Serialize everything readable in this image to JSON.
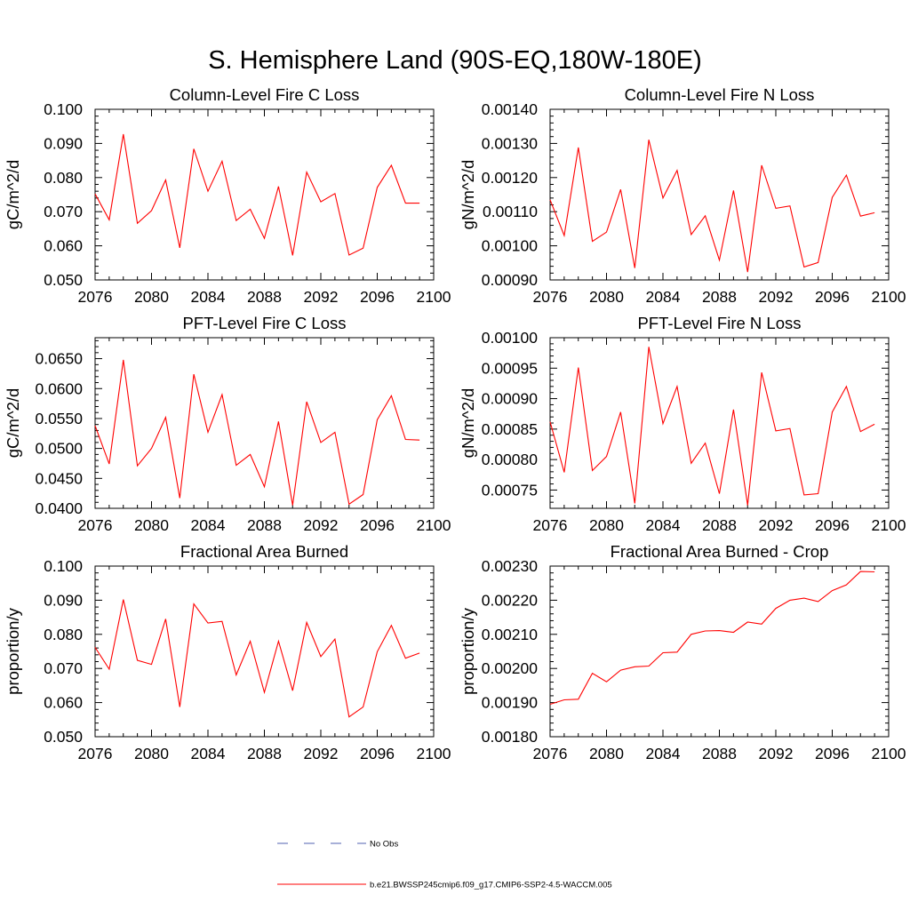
{
  "figure": {
    "title": "S. Hemisphere Land (90S-EQ,180W-180E)",
    "legend": [
      {
        "label": "No Obs",
        "color": "#5060b0",
        "dash": true
      },
      {
        "label": "b.e21.BWSSP245cmip6.f09_g17.CMIP6-SSP2-4.5-WACCM.005",
        "color": "#ff0000",
        "dash": false
      }
    ]
  },
  "chart_data": [
    {
      "type": "line",
      "title": "Column-Level Fire C Loss",
      "xlabel": "",
      "ylabel": "gC/m^2/d",
      "xlim": [
        2076,
        2100
      ],
      "ylim": [
        0.05,
        0.1
      ],
      "xticks": [
        "2076",
        "2080",
        "2084",
        "2088",
        "2092",
        "2096",
        "2100"
      ],
      "yticks": [
        "0.050",
        "0.060",
        "0.070",
        "0.080",
        "0.090",
        "0.100"
      ],
      "series": [
        {
          "name": "b.e21.BWSSP245cmip6.f09_g17.CMIP6-SSP2-4.5-WACCM.005",
          "color": "#ff0000",
          "x": [
            2076,
            2077,
            2078,
            2079,
            2080,
            2081,
            2082,
            2083,
            2084,
            2085,
            2086,
            2087,
            2088,
            2089,
            2090,
            2091,
            2092,
            2093,
            2094,
            2095,
            2096,
            2097,
            2098,
            2099
          ],
          "values": [
            0.0752,
            0.0676,
            0.0927,
            0.0666,
            0.0703,
            0.0793,
            0.0594,
            0.0884,
            0.076,
            0.0848,
            0.0674,
            0.0707,
            0.0622,
            0.0774,
            0.0572,
            0.0816,
            0.0729,
            0.0753,
            0.0573,
            0.0593,
            0.0771,
            0.0836,
            0.0725,
            0.0725
          ]
        }
      ]
    },
    {
      "type": "line",
      "title": "Column-Level Fire N Loss",
      "xlabel": "",
      "ylabel": "gN/m^2/d",
      "xlim": [
        2076,
        2100
      ],
      "ylim": [
        0.0009,
        0.0014
      ],
      "xticks": [
        "2076",
        "2080",
        "2084",
        "2088",
        "2092",
        "2096",
        "2100"
      ],
      "yticks": [
        "0.00090",
        "0.00100",
        "0.00110",
        "0.00120",
        "0.00130",
        "0.00140"
      ],
      "series": [
        {
          "name": "b.e21.BWSSP245cmip6.f09_g17.CMIP6-SSP2-4.5-WACCM.005",
          "color": "#ff0000",
          "x": [
            2076,
            2077,
            2078,
            2079,
            2080,
            2081,
            2082,
            2083,
            2084,
            2085,
            2086,
            2087,
            2088,
            2089,
            2090,
            2091,
            2092,
            2093,
            2094,
            2095,
            2096,
            2097,
            2098,
            2099
          ],
          "values": [
            0.001135,
            0.00103,
            0.001288,
            0.001013,
            0.00104,
            0.001165,
            0.000935,
            0.001311,
            0.00114,
            0.001221,
            0.001033,
            0.001088,
            0.000958,
            0.001162,
            0.000923,
            0.001236,
            0.00111,
            0.001117,
            0.000938,
            0.000951,
            0.001142,
            0.001207,
            0.001087,
            0.001097
          ]
        }
      ]
    },
    {
      "type": "line",
      "title": "PFT-Level Fire C Loss",
      "xlabel": "",
      "ylabel": "gC/m^2/d",
      "xlim": [
        2076,
        2100
      ],
      "ylim": [
        0.04,
        0.0685
      ],
      "xticks": [
        "2076",
        "2080",
        "2084",
        "2088",
        "2092",
        "2096",
        "2100"
      ],
      "yticks": [
        "0.0400",
        "0.0450",
        "0.0500",
        "0.0550",
        "0.0600",
        "0.0650"
      ],
      "series": [
        {
          "name": "b.e21.BWSSP245cmip6.f09_g17.CMIP6-SSP2-4.5-WACCM.005",
          "color": "#ff0000",
          "x": [
            2076,
            2077,
            2078,
            2079,
            2080,
            2081,
            2082,
            2083,
            2084,
            2085,
            2086,
            2087,
            2088,
            2089,
            2090,
            2091,
            2092,
            2093,
            2094,
            2095,
            2096,
            2097,
            2098,
            2099
          ],
          "values": [
            0.0538,
            0.0474,
            0.0648,
            0.0471,
            0.05,
            0.0552,
            0.0417,
            0.0624,
            0.0527,
            0.059,
            0.0472,
            0.049,
            0.0436,
            0.0545,
            0.0405,
            0.0578,
            0.051,
            0.0527,
            0.0407,
            0.0423,
            0.0548,
            0.0588,
            0.0515,
            0.0514
          ]
        }
      ]
    },
    {
      "type": "line",
      "title": "PFT-Level Fire N Loss",
      "xlabel": "",
      "ylabel": "gN/m^2/d",
      "xlim": [
        2076,
        2100
      ],
      "ylim": [
        0.00072,
        0.001
      ],
      "xticks": [
        "2076",
        "2080",
        "2084",
        "2088",
        "2092",
        "2096",
        "2100"
      ],
      "yticks": [
        "0.00075",
        "0.00080",
        "0.00085",
        "0.00090",
        "0.00095",
        "0.00100"
      ],
      "series": [
        {
          "name": "b.e21.BWSSP245cmip6.f09_g17.CMIP6-SSP2-4.5-WACCM.005",
          "color": "#ff0000",
          "x": [
            2076,
            2077,
            2078,
            2079,
            2080,
            2081,
            2082,
            2083,
            2084,
            2085,
            2086,
            2087,
            2088,
            2089,
            2090,
            2091,
            2092,
            2093,
            2094,
            2095,
            2096,
            2097,
            2098,
            2099
          ],
          "values": [
            0.000862,
            0.000779,
            0.000951,
            0.000782,
            0.000805,
            0.000878,
            0.000728,
            0.000985,
            0.000859,
            0.00092,
            0.000794,
            0.000827,
            0.000744,
            0.000882,
            0.000725,
            0.000943,
            0.000847,
            0.000851,
            0.000742,
            0.000744,
            0.000878,
            0.00092,
            0.000846,
            0.000858
          ]
        }
      ]
    },
    {
      "type": "line",
      "title": "Fractional Area Burned",
      "xlabel": "",
      "ylabel": "proportion/y",
      "xlim": [
        2076,
        2100
      ],
      "ylim": [
        0.05,
        0.1
      ],
      "xticks": [
        "2076",
        "2080",
        "2084",
        "2088",
        "2092",
        "2096",
        "2100"
      ],
      "yticks": [
        "0.050",
        "0.060",
        "0.070",
        "0.080",
        "0.090",
        "0.100"
      ],
      "series": [
        {
          "name": "b.e21.BWSSP245cmip6.f09_g17.CMIP6-SSP2-4.5-WACCM.005",
          "color": "#ff0000",
          "x": [
            2076,
            2077,
            2078,
            2079,
            2080,
            2081,
            2082,
            2083,
            2084,
            2085,
            2086,
            2087,
            2088,
            2089,
            2090,
            2091,
            2092,
            2093,
            2094,
            2095,
            2096,
            2097,
            2098,
            2099
          ],
          "values": [
            0.0762,
            0.0698,
            0.0902,
            0.0724,
            0.0712,
            0.0845,
            0.0587,
            0.0889,
            0.0833,
            0.0838,
            0.0681,
            0.078,
            0.063,
            0.078,
            0.0635,
            0.0835,
            0.0735,
            0.0786,
            0.0558,
            0.0587,
            0.0749,
            0.0826,
            0.073,
            0.0745
          ]
        }
      ]
    },
    {
      "type": "line",
      "title": "Fractional Area Burned - Crop",
      "xlabel": "",
      "ylabel": "proportion/y",
      "xlim": [
        2076,
        2100
      ],
      "ylim": [
        0.0018,
        0.0023
      ],
      "xticks": [
        "2076",
        "2080",
        "2084",
        "2088",
        "2092",
        "2096",
        "2100"
      ],
      "yticks": [
        "0.00180",
        "0.00190",
        "0.00200",
        "0.00210",
        "0.00220",
        "0.00230"
      ],
      "series": [
        {
          "name": "b.e21.BWSSP245cmip6.f09_g17.CMIP6-SSP2-4.5-WACCM.005",
          "color": "#ff0000",
          "x": [
            2076,
            2077,
            2078,
            2079,
            2080,
            2081,
            2082,
            2083,
            2084,
            2085,
            2086,
            2087,
            2088,
            2089,
            2090,
            2091,
            2092,
            2093,
            2094,
            2095,
            2096,
            2097,
            2098,
            2099
          ],
          "values": [
            0.001895,
            0.001908,
            0.00191,
            0.001986,
            0.001961,
            0.001995,
            0.002005,
            0.002007,
            0.002046,
            0.002048,
            0.0021,
            0.00211,
            0.002111,
            0.002106,
            0.002136,
            0.00213,
            0.002176,
            0.0022,
            0.002206,
            0.002196,
            0.002228,
            0.002245,
            0.002284,
            0.002283
          ]
        }
      ]
    }
  ]
}
